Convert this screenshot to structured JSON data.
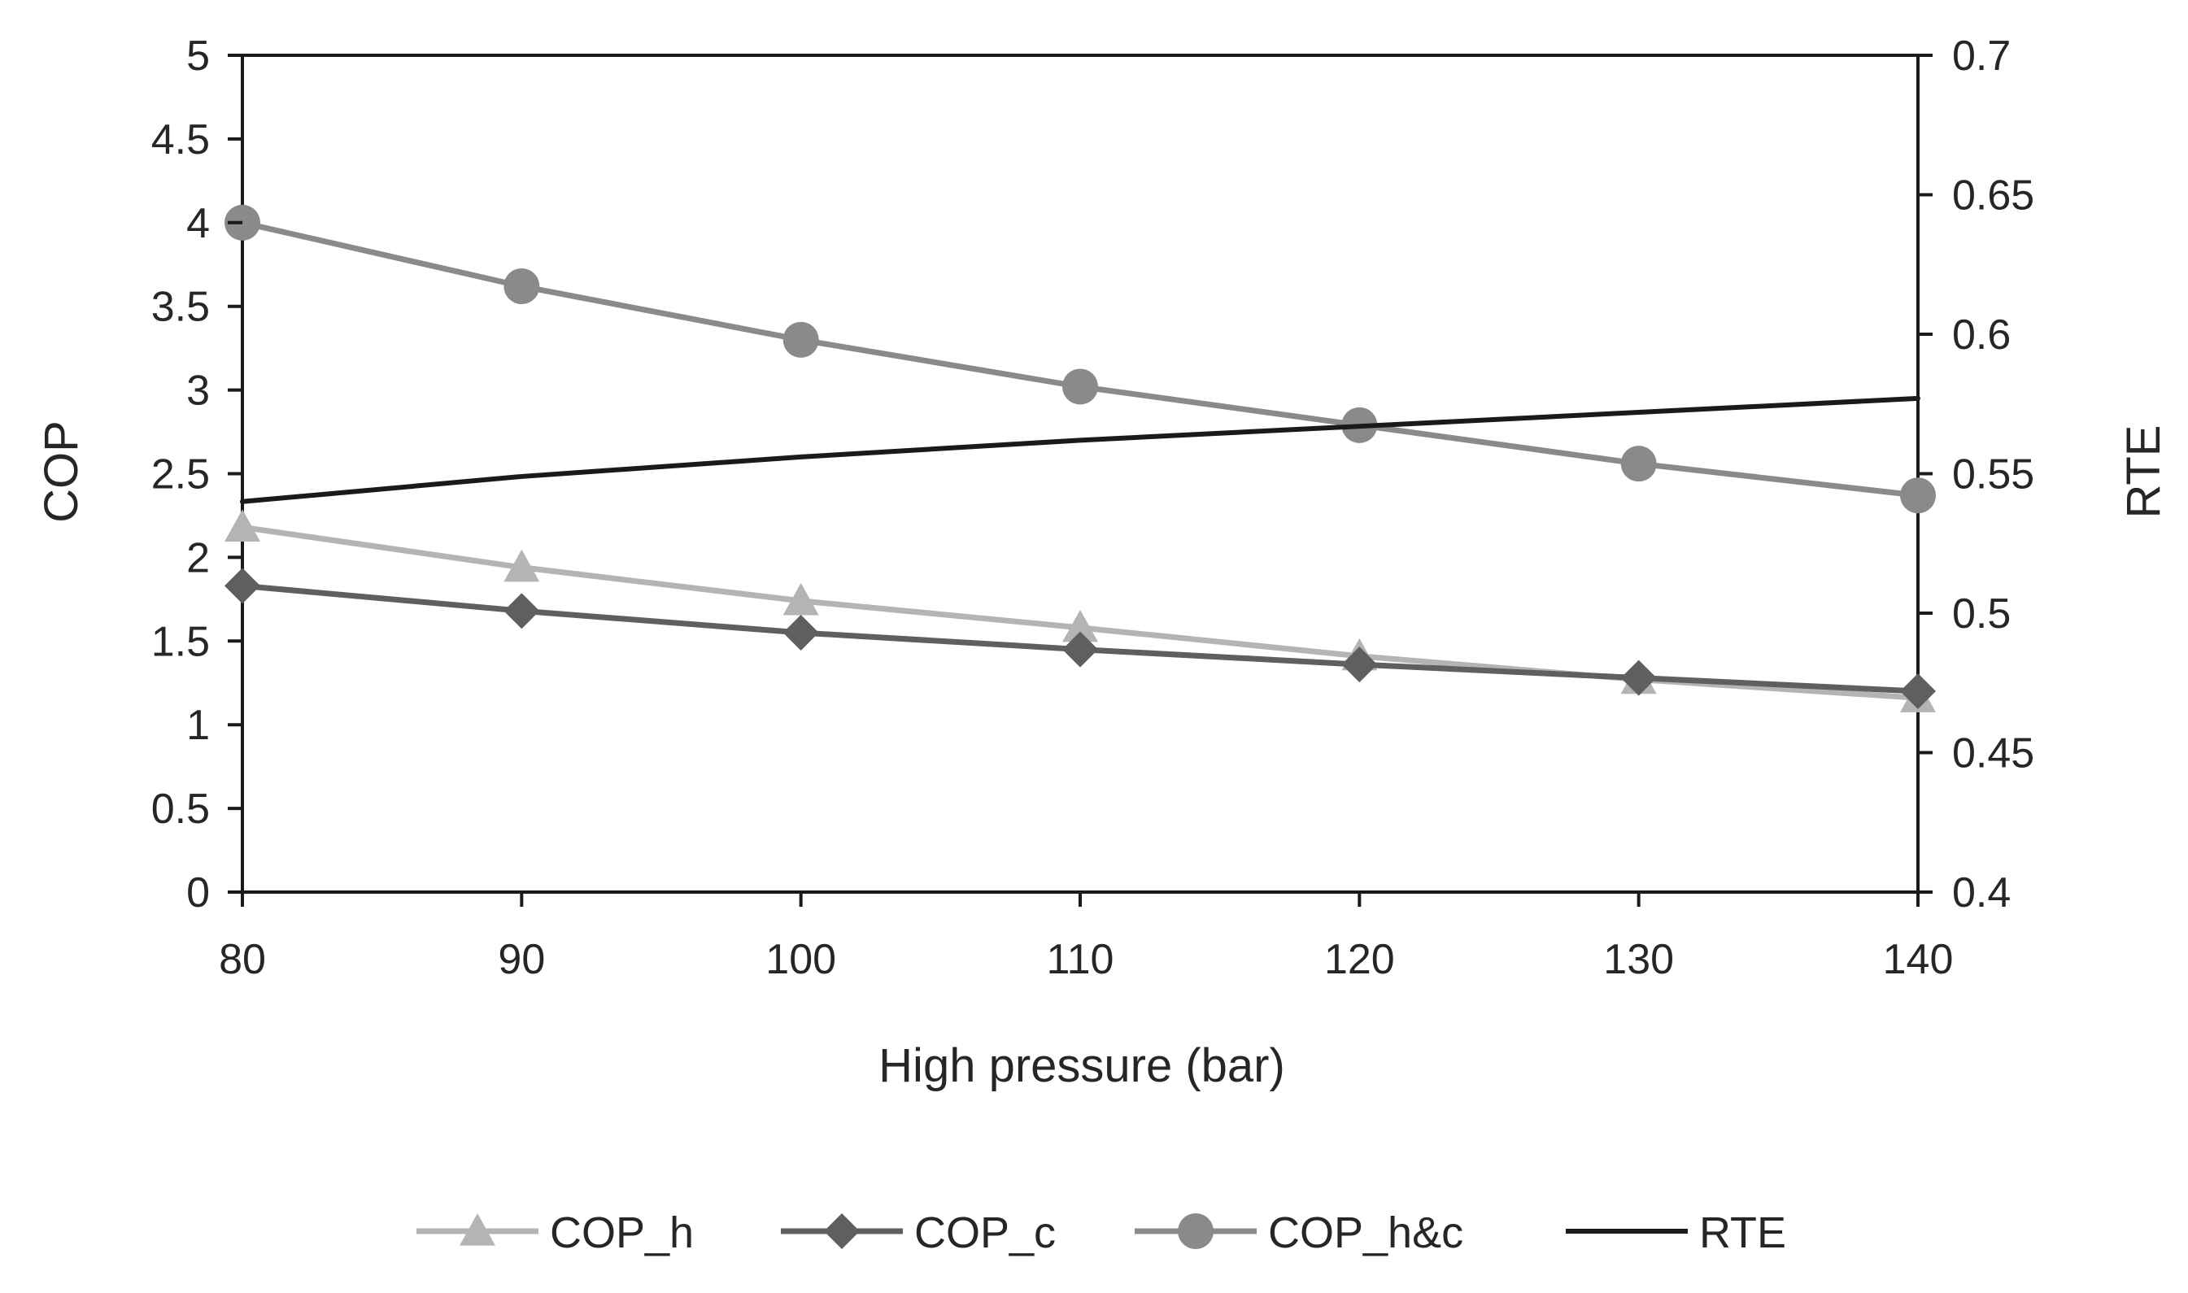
{
  "chart_data": {
    "type": "line",
    "title": "",
    "xlabel": "High pressure (bar)",
    "ylabel": "COP",
    "y2label": "RTE",
    "x": [
      80,
      90,
      100,
      110,
      120,
      130,
      140
    ],
    "xlim": [
      80,
      140
    ],
    "xticks": [
      "80",
      "90",
      "100",
      "110",
      "120",
      "130",
      "140"
    ],
    "ylim": [
      0,
      5
    ],
    "yticks": [
      "0",
      "0.5",
      "1",
      "1.5",
      "2",
      "2.5",
      "3",
      "3.5",
      "4",
      "4.5",
      "5"
    ],
    "y2lim": [
      0.4,
      0.7
    ],
    "y2ticks": [
      "0.4",
      "0.45",
      "0.5",
      "0.55",
      "0.6",
      "0.65",
      "0.7"
    ],
    "grid": false,
    "legend_position": "bottom",
    "series": [
      {
        "name": "COP_h",
        "axis": "left",
        "marker": "triangle",
        "color": "#b4b4b4",
        "values": [
          2.18,
          1.94,
          1.74,
          1.58,
          1.41,
          1.27,
          1.16
        ]
      },
      {
        "name": "COP_c",
        "axis": "left",
        "marker": "diamond",
        "color": "#5f5f5f",
        "values": [
          1.83,
          1.68,
          1.55,
          1.45,
          1.36,
          1.28,
          1.2
        ]
      },
      {
        "name": "COP_h&c",
        "axis": "left",
        "marker": "circle",
        "color": "#8a8a8a",
        "values": [
          4.0,
          3.62,
          3.3,
          3.02,
          2.79,
          2.56,
          2.37
        ]
      },
      {
        "name": "RTE",
        "axis": "right",
        "marker": "none",
        "color": "#1a1a1a",
        "values": [
          0.54,
          0.549,
          0.556,
          0.562,
          0.567,
          0.572,
          0.577
        ]
      }
    ]
  }
}
